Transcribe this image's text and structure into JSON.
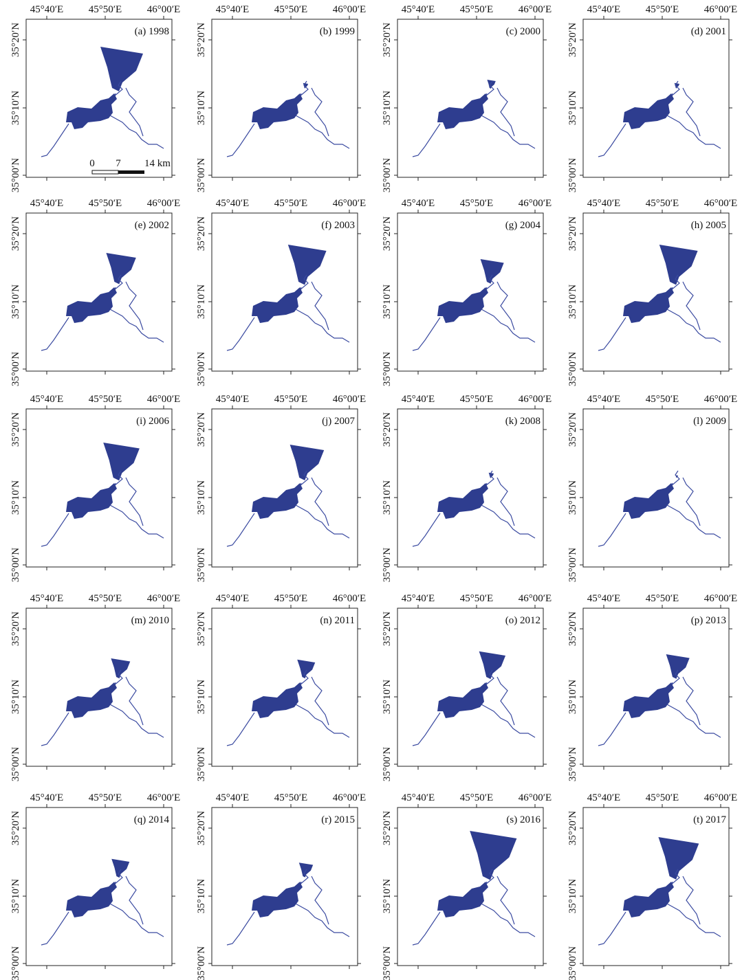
{
  "lon_ticks": [
    "45°40′E",
    "45°50′E",
    "46°00′E"
  ],
  "lat_ticks": [
    "35°20′N",
    "35°10′N",
    "35°00′N"
  ],
  "scale_bar": {
    "labels": [
      "0",
      "7",
      "14 km"
    ]
  },
  "panels": [
    {
      "label": "(a) 1998"
    },
    {
      "label": "(b) 1999"
    },
    {
      "label": "(c) 2000"
    },
    {
      "label": "(d) 2001"
    },
    {
      "label": "(e) 2002"
    },
    {
      "label": "(f) 2003"
    },
    {
      "label": "(g) 2004"
    },
    {
      "label": "(h) 2005"
    },
    {
      "label": "(i) 2006"
    },
    {
      "label": "(j) 2007"
    },
    {
      "label": "(k) 2008"
    },
    {
      "label": "(l) 2009"
    },
    {
      "label": "(m) 2010"
    },
    {
      "label": "(n) 2011"
    },
    {
      "label": "(o) 2012"
    },
    {
      "label": "(p) 2013"
    },
    {
      "label": "(q) 2014"
    },
    {
      "label": "(r) 2015"
    },
    {
      "label": "(s) 2016"
    },
    {
      "label": "(t) 2017"
    }
  ]
}
